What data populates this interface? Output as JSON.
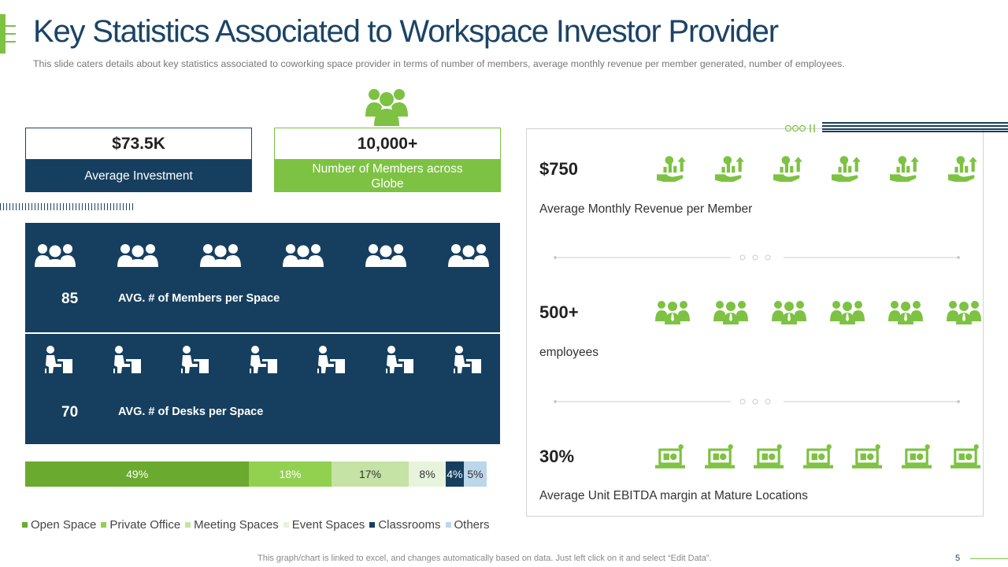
{
  "header": {
    "title": "Key Statistics Associated to Workspace Investor Provider",
    "subtitle": "This slide caters details about key statistics associated to coworking space provider  in terms of number of members, average  monthly revenue  per member generated,  number  of employees."
  },
  "stats": {
    "investment": {
      "value": "$73.5K",
      "label": "Average Investment"
    },
    "members": {
      "value": "10,000+",
      "label": "Number of Members across Globe"
    }
  },
  "panels": {
    "members_per_space": {
      "value": "85",
      "label": "AVG. # of Members per Space"
    },
    "desks_per_space": {
      "value": "70",
      "label": "AVG. # of Desks per Space"
    }
  },
  "right": {
    "revenue": {
      "value": "$750",
      "label": "Average Monthly Revenue per Member"
    },
    "employees": {
      "value": "500+",
      "label": "employees"
    },
    "ebitda": {
      "value": "30%",
      "label": "Average Unit EBITDA margin at Mature Locations"
    }
  },
  "colors": {
    "navy": "#163f5f",
    "green": "#7dc242"
  },
  "icons": {
    "top": "group-icon",
    "members_row": "group-icon",
    "desks_row": "desk-worker-icon",
    "revenue_row": "revenue-growth-icon",
    "employees_row": "employee-group-icon",
    "ebitda_row": "laptop-chart-icon"
  },
  "chart_data": {
    "type": "bar",
    "orientation": "horizontal-stacked",
    "categories": [
      "Open Space",
      "Private Office",
      "Meeting Spaces",
      "Event Spaces",
      "Classrooms",
      "Others"
    ],
    "values": [
      49,
      18,
      17,
      8,
      4,
      5
    ],
    "labels": [
      "49%",
      "18%",
      "17%",
      "8%",
      "4%",
      "5%"
    ],
    "colors": [
      "#6aaa2e",
      "#92d050",
      "#c5e3a5",
      "#e7f3dc",
      "#163f5f",
      "#bcd6ea"
    ],
    "label_colors": [
      "#ffffff",
      "#ffffff",
      "#333333",
      "#333333",
      "#ffffff",
      "#333333"
    ],
    "legend": "bottom"
  },
  "footer": {
    "note": "This graph/chart is linked to excel,  and changes automatically based on data. Just left click on it and select “Edit Data”.",
    "page": "5"
  }
}
